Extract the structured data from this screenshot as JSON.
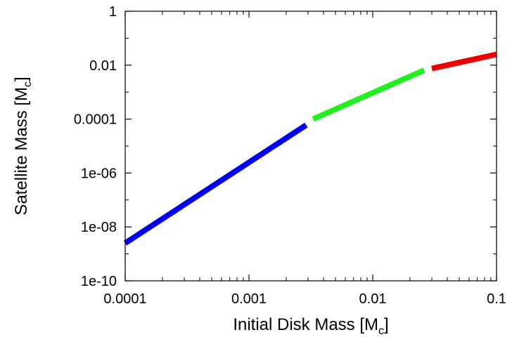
{
  "chart_data": {
    "type": "line",
    "xlabel": {
      "prefix": "Initial Disk Mass [M",
      "subscript": "c",
      "suffix": "]"
    },
    "ylabel": {
      "prefix": "Satellite Mass [M",
      "subscript": "c",
      "suffix": "]"
    },
    "x_scale": "log",
    "y_scale": "log",
    "xlim": [
      0.0001,
      0.1
    ],
    "ylim": [
      1e-10,
      1
    ],
    "x_ticks": [
      {
        "value": 0.0001,
        "label": "0.0001"
      },
      {
        "value": 0.001,
        "label": "0.001"
      },
      {
        "value": 0.01,
        "label": "0.01"
      },
      {
        "value": 0.1,
        "label": "0.1"
      }
    ],
    "y_ticks": [
      {
        "value": 1e-10,
        "label": "1e-10"
      },
      {
        "value": 1e-08,
        "label": "1e-08"
      },
      {
        "value": 1e-06,
        "label": "1e-06"
      },
      {
        "value": 0.0001,
        "label": "0.0001"
      },
      {
        "value": 0.01,
        "label": "0.01"
      },
      {
        "value": 1,
        "label": "1"
      }
    ],
    "grid": false,
    "series": [
      {
        "color": "#0000ee",
        "points": [
          [
            0.0001,
            2.5e-09
          ],
          [
            0.0029,
            6e-05
          ]
        ]
      },
      {
        "color": "#22ee22",
        "points": [
          [
            0.0033,
            0.0001
          ],
          [
            0.026,
            0.0065
          ]
        ]
      },
      {
        "color": "#ee0000",
        "points": [
          [
            0.03,
            0.0075
          ],
          [
            0.1,
            0.025
          ]
        ]
      }
    ]
  }
}
